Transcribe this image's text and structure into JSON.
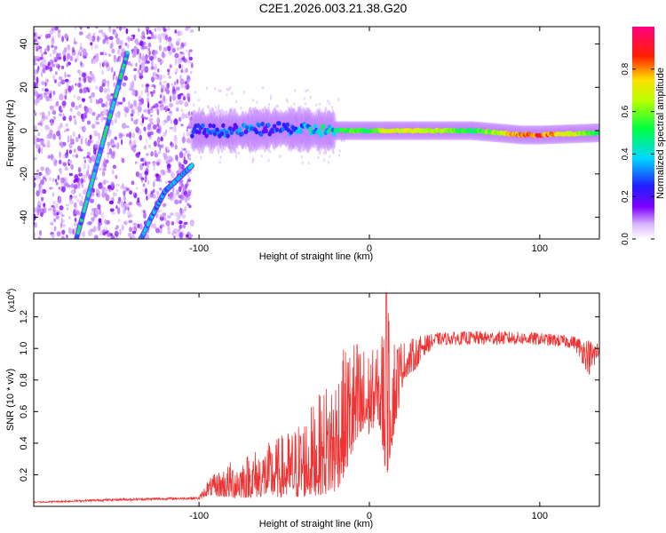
{
  "title": "C2E1.2026.003.21.38.G20",
  "chart_data": [
    {
      "type": "heatmap",
      "subtype": "spectrogram",
      "xlabel": "Height of straight line (km)",
      "ylabel": "Frequency (Hz)",
      "xlim": [
        -197,
        135
      ],
      "ylim": [
        -50,
        48
      ],
      "xticks": [
        -100,
        0,
        100
      ],
      "xtick_labels": [
        "-100",
        "0",
        "100"
      ],
      "yticks": [
        -40,
        -20,
        0,
        20,
        40
      ],
      "ytick_labels": [
        "-40",
        "-20",
        "0",
        "20",
        "40"
      ],
      "colorbar": {
        "label": "Normalized spectral amplitude",
        "range": [
          0,
          1
        ],
        "ticks": [
          0.0,
          0.2,
          0.4,
          0.6,
          0.8
        ],
        "tick_labels": [
          "0.0",
          "0.2",
          "0.4",
          "0.6",
          "0.8"
        ],
        "colormap": "rainbow (white→violet→blue→cyan→green→yellow→red→magenta)"
      },
      "ridges": [
        {
          "name": "main carrier line",
          "x": [
            -102,
            -80,
            -50,
            -25,
            -10,
            0,
            10,
            30,
            60,
            90,
            100,
            135
          ],
          "y": [
            0,
            0,
            1,
            0,
            0,
            0,
            0,
            0,
            0,
            -2,
            -2,
            -1
          ],
          "amplitude": [
            0.25,
            0.3,
            0.3,
            0.45,
            0.55,
            0.5,
            0.7,
            0.7,
            0.5,
            0.8,
            0.85,
            0.5
          ]
        },
        {
          "name": "steep ascending trace",
          "x": [
            -172,
            -142
          ],
          "y": [
            -50,
            36
          ],
          "amplitude": 0.4
        },
        {
          "name": "lower curved trace",
          "x": [
            -134,
            -128,
            -120,
            -112,
            -104
          ],
          "y": [
            -50,
            -40,
            -28,
            -22,
            -16
          ],
          "amplitude": 0.35
        }
      ]
    },
    {
      "type": "line",
      "xlabel": "Height of straight line (km)",
      "ylabel": "SNR (10 * v/v)",
      "yscale_label": "(x10",
      "yscale_exp": "4",
      "xlim": [
        -197,
        135
      ],
      "ylim": [
        0,
        1.35
      ],
      "xticks": [
        -100,
        0,
        100
      ],
      "xtick_labels": [
        "-100",
        "0",
        "100"
      ],
      "yticks": [
        0.2,
        0.4,
        0.6,
        0.8,
        1.0,
        1.2
      ],
      "ytick_labels": [
        "0.2",
        "0.4",
        "0.6",
        "0.8",
        "1.0",
        "1.2"
      ],
      "color": "#ee3333",
      "envelope": {
        "x": [
          -197,
          -150,
          -100,
          -95,
          -80,
          -60,
          -45,
          -30,
          -20,
          -10,
          0,
          5,
          10,
          12,
          20,
          30,
          40,
          60,
          80,
          100,
          120,
          130,
          135
        ],
        "low": [
          0.02,
          0.03,
          0.04,
          0.07,
          0.05,
          0.06,
          0.05,
          0.07,
          0.08,
          0.3,
          0.45,
          0.55,
          0.17,
          0.3,
          0.8,
          0.9,
          1.0,
          1.0,
          1.0,
          1.0,
          0.98,
          0.75,
          0.9
        ],
        "high": [
          0.03,
          0.05,
          0.06,
          0.17,
          0.3,
          0.4,
          0.5,
          0.7,
          0.9,
          1.1,
          1.0,
          1.0,
          1.35,
          1.15,
          1.05,
          1.08,
          1.1,
          1.11,
          1.11,
          1.1,
          1.08,
          1.06,
          1.05
        ]
      }
    }
  ]
}
